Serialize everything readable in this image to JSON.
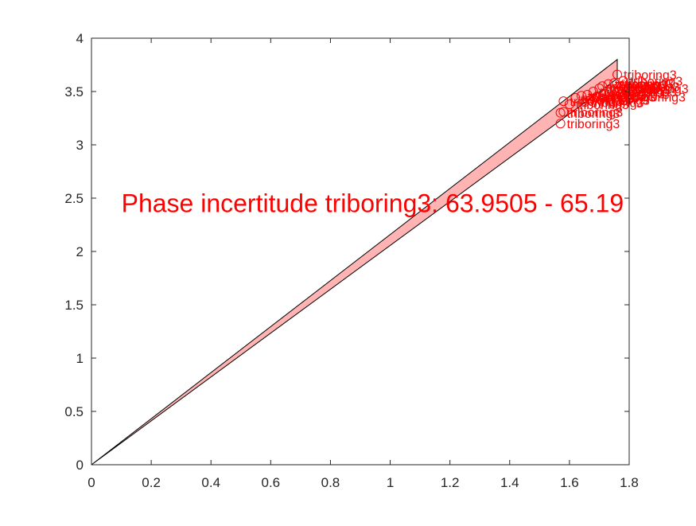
{
  "chart_data": {
    "type": "scatter",
    "title": "",
    "xlabel": "",
    "ylabel": "",
    "xlim": [
      0,
      1.8
    ],
    "ylim": [
      0,
      4
    ],
    "x_ticks": [
      "0",
      "0.2",
      "0.4",
      "0.6",
      "0.8",
      "1",
      "1.2",
      "1.4",
      "1.6",
      "1.8"
    ],
    "y_ticks": [
      "0",
      "0.5",
      "1",
      "1.5",
      "2",
      "2.5",
      "3",
      "3.5",
      "4"
    ],
    "grid": false,
    "colors": {
      "points": "#ff0000",
      "wedge_fill": "#ffb3b3",
      "wedge_edge": "#000000",
      "axes": "#262626"
    },
    "wedge": {
      "origin": [
        0,
        0
      ],
      "upper_edge_end": [
        1.76,
        3.8
      ],
      "lower_edge_end": [
        1.76,
        3.62
      ]
    },
    "annotation": {
      "text": "Phase incertitude triboring3: 63.9505 - 65.19",
      "x": 0.1,
      "y": 2.45
    },
    "points": [
      {
        "x": 1.57,
        "y": 3.2,
        "label": "triboring3"
      },
      {
        "x": 1.57,
        "y": 3.3,
        "label": "triboring3"
      },
      {
        "x": 1.58,
        "y": 3.31,
        "label": "triboring3"
      },
      {
        "x": 1.58,
        "y": 3.41,
        "label": "triboring3"
      },
      {
        "x": 1.6,
        "y": 3.38,
        "label": "triboring3"
      },
      {
        "x": 1.62,
        "y": 3.44,
        "label": "triboring3"
      },
      {
        "x": 1.64,
        "y": 3.46,
        "label": "triboring3"
      },
      {
        "x": 1.65,
        "y": 3.4,
        "label": "triboring3"
      },
      {
        "x": 1.66,
        "y": 3.47,
        "label": "triboring3"
      },
      {
        "x": 1.67,
        "y": 3.42,
        "label": "triboring3"
      },
      {
        "x": 1.68,
        "y": 3.5,
        "label": "triboring3"
      },
      {
        "x": 1.69,
        "y": 3.45,
        "label": "triboring3"
      },
      {
        "x": 1.7,
        "y": 3.53,
        "label": "triboring3"
      },
      {
        "x": 1.71,
        "y": 3.55,
        "label": "triboring3"
      },
      {
        "x": 1.72,
        "y": 3.48,
        "label": "triboring3"
      },
      {
        "x": 1.73,
        "y": 3.57,
        "label": "triboring3"
      },
      {
        "x": 1.74,
        "y": 3.52,
        "label": "triboring3"
      },
      {
        "x": 1.75,
        "y": 3.58,
        "label": "triboring3"
      },
      {
        "x": 1.76,
        "y": 3.5,
        "label": "triboring3"
      },
      {
        "x": 1.77,
        "y": 3.55,
        "label": "triboring3"
      },
      {
        "x": 1.78,
        "y": 3.6,
        "label": "triboring3"
      },
      {
        "x": 1.79,
        "y": 3.45,
        "label": "triboring3"
      },
      {
        "x": 1.8,
        "y": 3.53,
        "label": "triboring3"
      },
      {
        "x": 1.76,
        "y": 3.66,
        "label": "triboring3"
      }
    ]
  }
}
